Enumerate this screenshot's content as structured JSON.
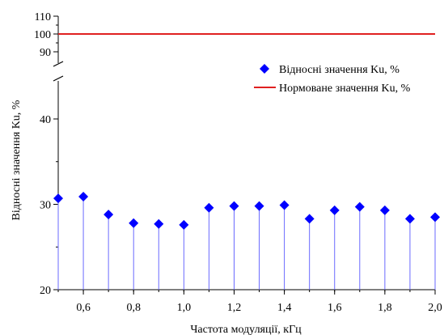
{
  "chart_data": {
    "type": "scatter",
    "xlabel": "Частота модуляції, кГц",
    "ylabel": "Відносні значення Ku, %",
    "xlim": [
      0.5,
      2.0
    ],
    "x_ticks": [
      "0,6",
      "0,8",
      "1,0",
      "1,2",
      "1,4",
      "1,6",
      "1,8",
      "2,0"
    ],
    "x_tick_values": [
      0.6,
      0.8,
      1.0,
      1.2,
      1.4,
      1.6,
      1.8,
      2.0
    ],
    "y_segments": [
      {
        "range": [
          20,
          45
        ],
        "ticks": [
          "20",
          "30",
          "40"
        ],
        "tick_values": [
          20,
          30,
          40
        ]
      },
      {
        "range": [
          85,
          110
        ],
        "ticks": [
          "90",
          "100",
          "110"
        ],
        "tick_values": [
          90,
          100,
          110
        ]
      }
    ],
    "axis_break": true,
    "grid": false,
    "legend_position": "top-right",
    "series": [
      {
        "name": "Відносні значення Ku, %",
        "marker": "diamond",
        "color": "#0000ff",
        "drop_lines": true,
        "x": [
          0.5,
          0.6,
          0.7,
          0.8,
          0.9,
          1.0,
          1.1,
          1.2,
          1.3,
          1.4,
          1.5,
          1.6,
          1.7,
          1.8,
          1.9,
          2.0
        ],
        "values": [
          30.7,
          30.9,
          28.8,
          27.8,
          27.7,
          27.6,
          29.6,
          29.8,
          29.8,
          29.9,
          28.3,
          29.3,
          29.7,
          29.3,
          28.3,
          28.5
        ]
      },
      {
        "name": "Нормоване значення Ku, %",
        "type": "hline",
        "color": "#e02020",
        "value": 100
      }
    ]
  }
}
